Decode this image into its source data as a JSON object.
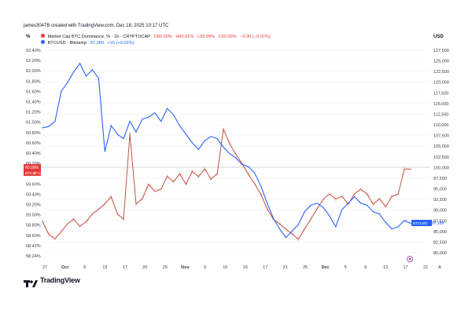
{
  "credit": "james3047B created with TradingView.com, Dec 18, 2025 10:17 UTC",
  "left_unit": "%",
  "right_unit": "USD",
  "legend": [
    {
      "name": "Market Cap BTC Dominance, % · 1h · CRYPTOCAP",
      "values": [
        "O60.00%",
        "H60.01%",
        "L59.99%",
        "C60.00%",
        "−0.00 (−0.01%)"
      ],
      "color": "#e53935"
    },
    {
      "name": "BTCUSD · Bitstamp",
      "values": [
        "87,289",
        "+16 (+0.02%)"
      ],
      "color": "#2962ff"
    }
  ],
  "price_tags": {
    "left_value": "60.00%",
    "left_label": "BTC.D",
    "left_sub": "47:14",
    "right_value": "87,289",
    "right_label": "BTCUSD"
  },
  "footer": {
    "brand": "TradingView",
    "axis_icon": "zoom-scale-icon",
    "auto_label": "A"
  },
  "colors": {
    "dominance": "#e53935",
    "price": "#2962ff",
    "grid": "#eef0f4"
  },
  "chart_data": {
    "type": "line",
    "x_ticks": [
      "27",
      "Oct",
      "6",
      "13",
      "17",
      "20",
      "25",
      "Nov",
      "5",
      "10",
      "15",
      "17",
      "21",
      "25",
      "Dec",
      "5",
      "9",
      "13",
      "17",
      "21"
    ],
    "y_left_ticks": [
      "62.40%",
      "62.20%",
      "62.00%",
      "61.80%",
      "61.60%",
      "61.40%",
      "61.20%",
      "61.00%",
      "60.80%",
      "60.60%",
      "60.40%",
      "60.20%",
      "59.80%",
      "59.60%",
      "59.40%",
      "59.20%",
      "59.00%",
      "58.80%",
      "58.60%",
      "58.42%",
      "58.24%"
    ],
    "y_right_ticks": [
      "127,500",
      "125,000",
      "122,500",
      "120,000",
      "117,500",
      "115,000",
      "112,500",
      "110,000",
      "107,500",
      "105,000",
      "102,500",
      "100,000",
      "97,500",
      "95,000",
      "92,500",
      "90,000",
      "87,500",
      "85,000",
      "82,500",
      "80,000"
    ],
    "y_left_range": [
      58.2,
      62.5
    ],
    "y_right_range": [
      79000,
      129000
    ],
    "series": [
      {
        "name": "Market Cap BTC Dominance, %",
        "axis": "left",
        "values": [
          58.95,
          58.7,
          58.6,
          58.75,
          58.9,
          59.0,
          58.85,
          58.95,
          59.1,
          59.2,
          59.3,
          59.45,
          59.1,
          59.0,
          60.7,
          59.3,
          59.4,
          59.7,
          59.55,
          59.6,
          59.85,
          59.75,
          59.9,
          59.7,
          59.95,
          59.85,
          60.0,
          59.8,
          59.9,
          60.8,
          60.5,
          60.3,
          60.1,
          59.9,
          59.7,
          59.5,
          59.2,
          59.0,
          58.9,
          58.8,
          58.7,
          58.6,
          58.8,
          59.0,
          59.2,
          59.4,
          59.5,
          59.4,
          59.45,
          59.3,
          59.5,
          59.6,
          59.5,
          59.3,
          59.4,
          59.25,
          59.45,
          59.5,
          60.0,
          60.0
        ]
      },
      {
        "name": "BTCUSD",
        "axis": "right",
        "values": [
          109500,
          109800,
          111000,
          118000,
          120000,
          122500,
          124500,
          121500,
          123000,
          121000,
          104000,
          110000,
          108000,
          107000,
          111000,
          108500,
          111500,
          112000,
          113000,
          111000,
          114000,
          112500,
          110000,
          108000,
          106000,
          104500,
          106500,
          107500,
          107000,
          105000,
          103500,
          102500,
          101000,
          100500,
          99000,
          96000,
          92000,
          88500,
          86000,
          84000,
          85500,
          87000,
          90000,
          91500,
          92000,
          91000,
          89000,
          86500,
          90500,
          92000,
          93500,
          92000,
          91500,
          90000,
          89500,
          87500,
          86000,
          86500,
          88000,
          87289
        ]
      }
    ]
  }
}
